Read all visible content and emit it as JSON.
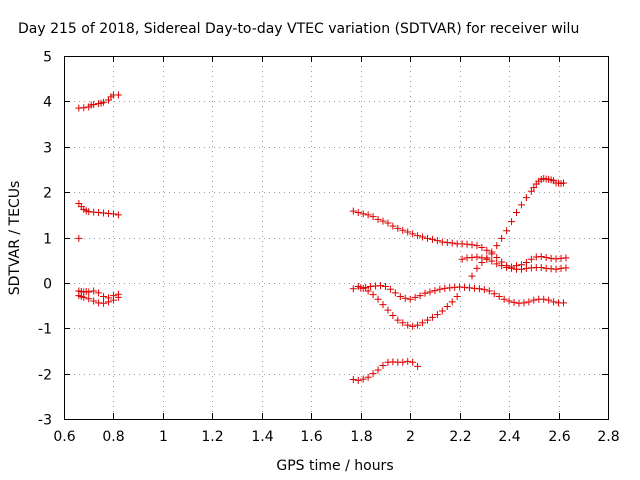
{
  "chart_data": {
    "type": "scatter",
    "title": "Day 215 of 2018, Sidereal Day-to-day VTEC variation (SDTVAR) for receiver wilu",
    "xlabel": "GPS time / hours",
    "ylabel": "SDTVAR / TECUs",
    "xlim": [
      0.6,
      2.8
    ],
    "ylim": [
      -3,
      5
    ],
    "xticks": [
      "0.6",
      "0.8",
      "1",
      "1.2",
      "1.4",
      "1.6",
      "1.8",
      "2",
      "2.2",
      "2.4",
      "2.6",
      "2.8"
    ],
    "yticks": [
      "-3",
      "-2",
      "-1",
      "0",
      "1",
      "2",
      "3",
      "4",
      "5"
    ],
    "grid": true,
    "marker": "+",
    "color": "#dd0000",
    "series": [
      {
        "name": "s1",
        "x": [
          0.66,
          0.68,
          0.7,
          0.71,
          0.72,
          0.74,
          0.75,
          0.76,
          0.78,
          0.79,
          0.8,
          0.82
        ],
        "y": [
          3.85,
          3.86,
          3.88,
          3.92,
          3.93,
          3.95,
          3.96,
          3.98,
          4.03,
          4.1,
          4.14,
          4.14
        ]
      },
      {
        "name": "s2",
        "x": [
          0.66,
          0.67,
          0.68,
          0.69,
          0.7,
          0.72,
          0.74,
          0.76,
          0.78,
          0.8,
          0.82
        ],
        "y": [
          1.75,
          1.68,
          1.62,
          1.59,
          1.57,
          1.56,
          1.55,
          1.54,
          1.53,
          1.52,
          1.5
        ]
      },
      {
        "name": "s3",
        "x": [
          0.66
        ],
        "y": [
          0.98
        ]
      },
      {
        "name": "s4",
        "x": [
          0.66,
          0.67,
          0.68,
          0.69,
          0.7,
          0.72,
          0.74,
          0.76,
          0.78,
          0.8,
          0.82
        ],
        "y": [
          -0.18,
          -0.19,
          -0.2,
          -0.19,
          -0.2,
          -0.18,
          -0.22,
          -0.3,
          -0.33,
          -0.28,
          -0.25
        ]
      },
      {
        "name": "s5",
        "x": [
          0.66,
          0.67,
          0.68,
          0.7,
          0.72,
          0.74,
          0.76,
          0.78,
          0.8,
          0.82
        ],
        "y": [
          -0.28,
          -0.3,
          -0.32,
          -0.35,
          -0.4,
          -0.44,
          -0.45,
          -0.42,
          -0.38,
          -0.32
        ]
      },
      {
        "name": "s6",
        "x": [
          1.77,
          1.79,
          1.81,
          1.83,
          1.85,
          1.87,
          1.89,
          1.91,
          1.93,
          1.95,
          1.97,
          1.99,
          2.01,
          2.03,
          2.05,
          2.07,
          2.09,
          2.11,
          2.13,
          2.15,
          2.17,
          2.19,
          2.21,
          2.23,
          2.25,
          2.27,
          2.29,
          2.31,
          2.33,
          2.35,
          2.37,
          2.39,
          2.41,
          2.43,
          2.45,
          2.47,
          2.49,
          2.51,
          2.53,
          2.55,
          2.57,
          2.59,
          2.61,
          2.63
        ],
        "y": [
          1.58,
          1.55,
          1.52,
          1.5,
          1.46,
          1.4,
          1.36,
          1.32,
          1.25,
          1.2,
          1.16,
          1.12,
          1.08,
          1.04,
          1.01,
          0.98,
          0.96,
          0.93,
          0.9,
          0.89,
          0.88,
          0.86,
          0.86,
          0.85,
          0.84,
          0.82,
          0.78,
          0.72,
          0.64,
          0.56,
          0.46,
          0.38,
          0.32,
          0.3,
          0.3,
          0.32,
          0.33,
          0.34,
          0.34,
          0.32,
          0.31,
          0.3,
          0.32,
          0.33
        ]
      },
      {
        "name": "s7",
        "x": [
          1.77,
          1.8,
          1.82,
          1.84,
          1.86,
          1.88,
          1.9,
          1.92,
          1.94,
          1.96,
          1.98,
          2.0,
          2.02,
          2.04,
          2.06,
          2.08,
          2.1,
          2.12,
          2.14,
          2.16,
          2.18,
          2.2,
          2.22,
          2.24,
          2.26,
          2.28,
          2.3,
          2.32,
          2.34,
          2.36,
          2.38,
          2.4,
          2.42,
          2.44,
          2.46,
          2.48,
          2.5,
          2.52,
          2.54,
          2.56,
          2.58,
          2.6,
          2.62
        ],
        "y": [
          -0.13,
          -0.11,
          -0.1,
          -0.08,
          -0.07,
          -0.06,
          -0.08,
          -0.14,
          -0.22,
          -0.3,
          -0.34,
          -0.36,
          -0.32,
          -0.28,
          -0.23,
          -0.2,
          -0.17,
          -0.14,
          -0.12,
          -0.11,
          -0.1,
          -0.09,
          -0.1,
          -0.11,
          -0.12,
          -0.13,
          -0.15,
          -0.18,
          -0.24,
          -0.3,
          -0.36,
          -0.4,
          -0.43,
          -0.45,
          -0.44,
          -0.42,
          -0.38,
          -0.36,
          -0.36,
          -0.38,
          -0.42,
          -0.44,
          -0.44
        ]
      },
      {
        "name": "s8",
        "x": [
          1.79,
          1.81,
          1.83,
          1.85,
          1.87,
          1.89,
          1.91,
          1.93,
          1.95,
          1.97,
          1.99,
          2.01,
          2.03,
          2.05,
          2.07,
          2.09,
          2.11,
          2.13,
          2.15,
          2.17,
          2.19
        ],
        "y": [
          -0.08,
          -0.12,
          -0.18,
          -0.26,
          -0.36,
          -0.48,
          -0.6,
          -0.72,
          -0.82,
          -0.88,
          -0.93,
          -0.96,
          -0.93,
          -0.88,
          -0.82,
          -0.76,
          -0.7,
          -0.62,
          -0.52,
          -0.42,
          -0.3
        ]
      },
      {
        "name": "s9",
        "x": [
          2.21,
          2.23,
          2.25,
          2.27,
          2.29,
          2.31,
          2.33,
          2.35,
          2.37,
          2.39,
          2.41,
          2.43,
          2.45,
          2.47,
          2.49,
          2.51,
          2.53,
          2.55,
          2.57,
          2.59,
          2.61,
          2.63
        ],
        "y": [
          0.52,
          0.55,
          0.56,
          0.57,
          0.55,
          0.52,
          0.48,
          0.42,
          0.38,
          0.34,
          0.35,
          0.38,
          0.4,
          0.45,
          0.52,
          0.57,
          0.58,
          0.56,
          0.54,
          0.53,
          0.54,
          0.55
        ]
      },
      {
        "name": "s10",
        "x": [
          2.25,
          2.27,
          2.29,
          2.31,
          2.33,
          2.35,
          2.37,
          2.39,
          2.41,
          2.43,
          2.45,
          2.47,
          2.49,
          2.5,
          2.51,
          2.52,
          2.53,
          2.54,
          2.55,
          2.56,
          2.57,
          2.58,
          2.59,
          2.6,
          2.61,
          2.62
        ],
        "y": [
          0.15,
          0.32,
          0.45,
          0.55,
          0.68,
          0.82,
          0.98,
          1.15,
          1.35,
          1.55,
          1.72,
          1.88,
          2.02,
          2.1,
          2.18,
          2.24,
          2.28,
          2.3,
          2.29,
          2.28,
          2.27,
          2.25,
          2.2,
          2.2,
          2.19,
          2.2
        ]
      },
      {
        "name": "s11",
        "x": [
          1.77,
          1.79,
          1.81,
          1.83,
          1.85,
          1.87,
          1.89,
          1.91,
          1.93,
          1.95,
          1.97,
          1.99,
          2.01,
          2.03
        ],
        "y": [
          -2.13,
          -2.15,
          -2.12,
          -2.08,
          -2.0,
          -1.92,
          -1.82,
          -1.75,
          -1.74,
          -1.75,
          -1.75,
          -1.73,
          -1.75,
          -1.84
        ]
      }
    ]
  }
}
